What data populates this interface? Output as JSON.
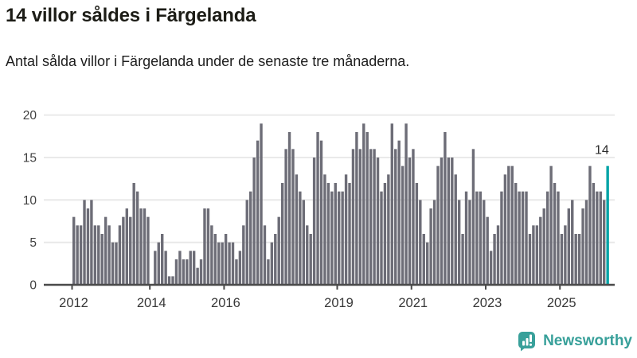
{
  "header": {
    "title": "14 villor såldes i Färgelanda",
    "subtitle": "Antal sålda villor i Färgelanda under de senaste tre månaderna."
  },
  "chart_data": {
    "type": "bar",
    "title": "14 villor såldes i Färgelanda",
    "subtitle": "Antal sålda villor i Färgelanda under de senaste tre månaderna.",
    "unit": "sålda villor (rullande 3 månader)",
    "values": [
      8,
      7,
      7,
      10,
      9,
      10,
      7,
      7,
      6,
      8,
      7,
      5,
      5,
      7,
      8,
      9,
      8,
      12,
      11,
      9,
      9,
      8,
      0,
      4,
      5,
      6,
      4,
      1,
      1,
      3,
      4,
      3,
      3,
      4,
      4,
      2,
      3,
      9,
      9,
      7,
      6,
      5,
      5,
      6,
      5,
      5,
      3,
      4,
      7,
      10,
      11,
      15,
      17,
      19,
      7,
      3,
      5,
      6,
      8,
      12,
      16,
      18,
      16,
      13,
      11,
      10,
      7,
      6,
      15,
      18,
      17,
      13,
      12,
      11,
      12,
      11,
      11,
      13,
      12,
      16,
      18,
      16,
      19,
      18,
      16,
      16,
      15,
      11,
      12,
      13,
      19,
      16,
      17,
      14,
      19,
      15,
      16,
      12,
      10,
      6,
      5,
      9,
      10,
      14,
      15,
      18,
      15,
      15,
      13,
      10,
      6,
      11,
      10,
      16,
      11,
      11,
      10,
      8,
      4,
      6,
      7,
      11,
      13,
      14,
      14,
      12,
      11,
      11,
      11,
      6,
      7,
      7,
      8,
      9,
      11,
      14,
      12,
      11,
      6,
      7,
      9,
      10,
      6,
      6,
      9,
      10,
      14,
      12,
      11,
      11,
      10,
      14
    ],
    "highlight_index": 151,
    "highlight_value": 14,
    "highlight_label": "14",
    "y_axis": {
      "ticks": [
        0,
        5,
        10,
        15,
        20
      ],
      "min": 0,
      "max": 20,
      "grid": true
    },
    "x_axis": {
      "tick_labels": [
        "2012",
        "2014",
        "2016",
        "2019",
        "2021",
        "2023",
        "2025"
      ],
      "tick_indices": [
        0,
        22,
        43,
        75,
        96,
        117,
        138
      ]
    },
    "legend": "none",
    "colors": {
      "bar": "#6d6d77",
      "highlight": "#00a3a6",
      "axis": "#4a4a4a",
      "gridline": "#e7e7e7",
      "y_label": "#3f3f3f",
      "x_label": "#383838",
      "annotation": "#2b2b2b"
    }
  },
  "branding": {
    "logo_text": "Newsworthy",
    "logo_color": "#38a09a"
  }
}
